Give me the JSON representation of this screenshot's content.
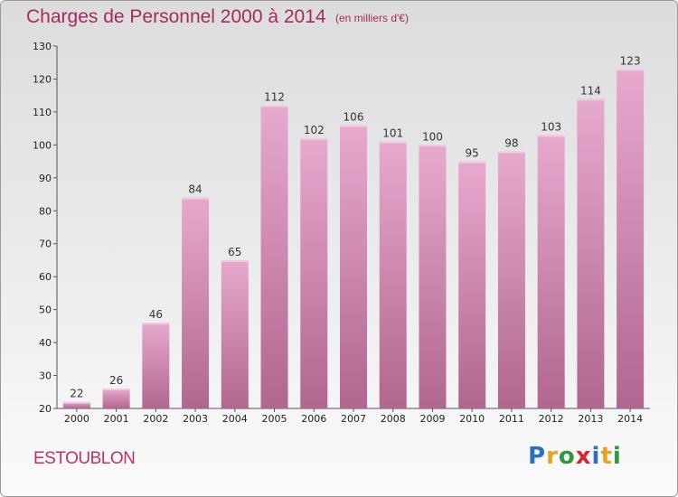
{
  "title": "Charges de Personnel 2000 à 2014",
  "subtitle": "(en milliers d'€)",
  "commune": "ESTOUBLON",
  "logo": {
    "text": "Proxiti",
    "letters": [
      {
        "char": "P",
        "color": "#2f6fc0"
      },
      {
        "char": "r",
        "color": "#e8a21e"
      },
      {
        "char": "o",
        "color": "#2f9a3c"
      },
      {
        "char": "x",
        "color": "#d8262e"
      },
      {
        "char": "i",
        "color": "#2f6fc0"
      },
      {
        "char": "t",
        "color": "#e8a21e"
      },
      {
        "char": "i",
        "color": "#2f9a3c"
      }
    ]
  },
  "colors": {
    "title": "#a52a62",
    "bar_light": "#e8a9cf",
    "bar_dark": "#b0668f",
    "axis_text": "#222222"
  },
  "chart_data": {
    "type": "bar",
    "title": "Charges de Personnel 2000 à 2014",
    "subtitle": "(en milliers d'€)",
    "categories": [
      "2000",
      "2001",
      "2002",
      "2003",
      "2004",
      "2005",
      "2006",
      "2007",
      "2008",
      "2009",
      "2010",
      "2011",
      "2012",
      "2013",
      "2014"
    ],
    "values": [
      22,
      26,
      46,
      84,
      65,
      112,
      102,
      106,
      101,
      100,
      95,
      98,
      103,
      114,
      123
    ],
    "ylim": [
      20,
      130
    ],
    "yticks": [
      20,
      30,
      40,
      50,
      60,
      70,
      80,
      90,
      100,
      110,
      120,
      130
    ],
    "grid": false,
    "legend": "none"
  }
}
